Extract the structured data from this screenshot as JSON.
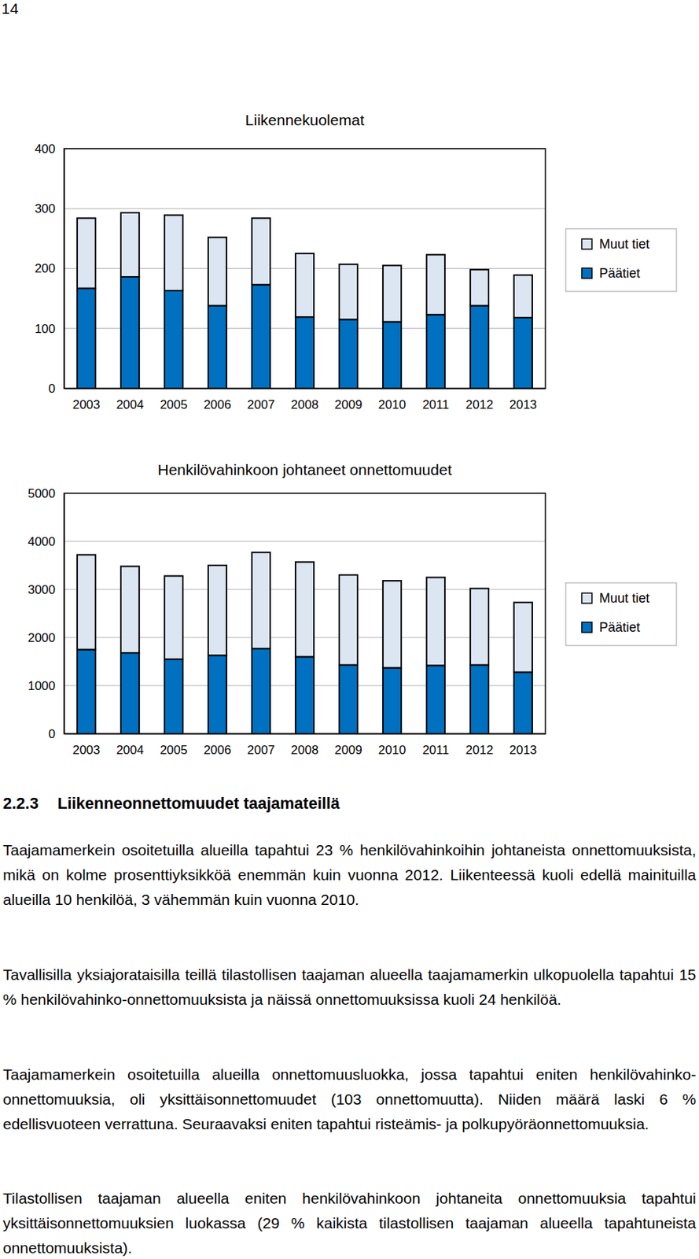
{
  "page_number": "14",
  "chart_data": [
    {
      "type": "bar",
      "title": "Liikennekuolemat",
      "stacked": true,
      "grid": true,
      "legend": "right",
      "categories": [
        "2003",
        "2004",
        "2005",
        "2006",
        "2007",
        "2008",
        "2009",
        "2010",
        "2011",
        "2012",
        "2013"
      ],
      "series": [
        {
          "name": "Päätiet",
          "color": "#0070c0",
          "values": [
            167,
            186,
            163,
            138,
            173,
            119,
            115,
            111,
            123,
            138,
            118
          ]
        },
        {
          "name": "Muut tiet",
          "color": "#dce6f2",
          "values": [
            117,
            107,
            126,
            114,
            111,
            106,
            92,
            94,
            100,
            60,
            71
          ]
        }
      ],
      "ylim": [
        0,
        400
      ],
      "yticks": [
        0,
        100,
        200,
        300,
        400
      ]
    },
    {
      "type": "bar",
      "title": "Henkilövahinkoon johtaneet onnettomuudet",
      "stacked": true,
      "grid": true,
      "legend": "right",
      "categories": [
        "2003",
        "2004",
        "2005",
        "2006",
        "2007",
        "2008",
        "2009",
        "2010",
        "2011",
        "2012",
        "2013"
      ],
      "series": [
        {
          "name": "Päätiet",
          "color": "#0070c0",
          "values": [
            1750,
            1680,
            1550,
            1630,
            1770,
            1600,
            1430,
            1370,
            1420,
            1430,
            1280
          ]
        },
        {
          "name": "Muut tiet",
          "color": "#dce6f2",
          "values": [
            1970,
            1800,
            1730,
            1870,
            2000,
            1970,
            1870,
            1810,
            1830,
            1590,
            1450
          ]
        }
      ],
      "ylim": [
        0,
        5000
      ],
      "yticks": [
        0,
        1000,
        2000,
        3000,
        4000,
        5000
      ]
    }
  ],
  "section": {
    "number": "2.2.3",
    "title": "Liikenneonnettomuudet taajamateillä",
    "paragraphs": [
      "Taajamamerkein osoitetuilla alueilla tapahtui 23 % henkilövahinkoihin johtaneista onnettomuuksista, mikä on kolme prosenttiyksikköä enemmän kuin vuonna 2012. Liikenteessä kuoli edellä mainituilla alueilla 10 henkilöä, 3 vähemmän kuin vuonna 2010.",
      "Tavallisilla yksiajorataisilla teillä tilastollisen taajaman alueella taajamamerkin ulkopuolella tapahtui 15 % henkilövahinko-onnettomuuksista ja näissä onnettomuuksissa kuoli 24 henkilöä.",
      "Taajamamerkein osoitetuilla alueilla onnettomuusluokka, jossa tapahtui eniten henkilövahinko-onnettomuuksia, oli yksittäisonnettomuudet (103 onnettomuutta). Niiden määrä laski 6 % edellisvuoteen verrattuna. Seuraavaksi eniten tapahtui risteämis- ja polkupyöräonnettomuuksia.",
      "Tilastollisen taajaman alueella eniten henkilövahinkoon johtaneita onnettomuuksia tapahtui yksittäisonnettomuuksien luokassa (29 % kaikista tilastollisen taajaman alueella tapahtuneista onnettomuuksista)."
    ]
  }
}
